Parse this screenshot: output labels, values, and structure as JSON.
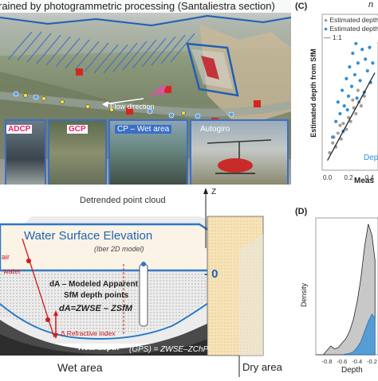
{
  "top_left": {
    "title": "rained by photogrammetric processing (Santaliestra section)",
    "flow_label": "Flow direction",
    "photos": [
      {
        "label": "ADCP",
        "color": "#e8206e"
      },
      {
        "label": "GCP",
        "color": "#e8206e"
      },
      {
        "label": "CP – Wet area",
        "color": "#ffffff"
      },
      {
        "label": "Autogiro",
        "color": "#ffffff"
      }
    ]
  },
  "panel_c": {
    "letter": "(C)",
    "corner_text": "n",
    "legend": [
      "Estimated depth",
      "Estimated depth",
      "1:1"
    ],
    "ylabel": "Estimated depth from SfM",
    "xlabel": "Meas",
    "inset_label": "Dept",
    "xticks": [
      "0.0",
      "0.2",
      "0.4"
    ]
  },
  "chart_data": [
    {
      "type": "scatter",
      "title": "",
      "xlabel": "Meas",
      "ylabel": "Estimated depth from SfM",
      "xlim": [
        -0.05,
        0.48
      ],
      "ylim": [
        -0.05,
        0.75
      ],
      "xticks": [
        0.0,
        0.2,
        0.4
      ],
      "series": [
        {
          "name": "Estimated depth",
          "color": "#9e9e9e",
          "points": [
            [
              0.02,
              0.04
            ],
            [
              0.05,
              0.09
            ],
            [
              0.08,
              0.07
            ],
            [
              0.1,
              0.14
            ],
            [
              0.13,
              0.11
            ],
            [
              0.15,
              0.19
            ],
            [
              0.18,
              0.16
            ],
            [
              0.2,
              0.22
            ],
            [
              0.22,
              0.2
            ],
            [
              0.25,
              0.27
            ],
            [
              0.27,
              0.24
            ],
            [
              0.3,
              0.3
            ],
            [
              0.32,
              0.28
            ],
            [
              0.35,
              0.33
            ],
            [
              0.12,
              0.18
            ],
            [
              0.24,
              0.31
            ],
            [
              0.06,
              0.12
            ],
            [
              0.29,
              0.36
            ]
          ]
        },
        {
          "name": "Estimated depth",
          "color": "#2f8fd8",
          "points": [
            [
              0.05,
              0.12
            ],
            [
              0.08,
              0.2
            ],
            [
              0.1,
              0.3
            ],
            [
              0.12,
              0.24
            ],
            [
              0.14,
              0.36
            ],
            [
              0.16,
              0.28
            ],
            [
              0.18,
              0.42
            ],
            [
              0.2,
              0.33
            ],
            [
              0.21,
              0.48
            ],
            [
              0.23,
              0.38
            ],
            [
              0.24,
              0.55
            ],
            [
              0.26,
              0.44
            ],
            [
              0.27,
              0.6
            ],
            [
              0.29,
              0.5
            ],
            [
              0.3,
              0.66
            ],
            [
              0.31,
              0.41
            ],
            [
              0.33,
              0.57
            ],
            [
              0.34,
              0.7
            ],
            [
              0.36,
              0.52
            ],
            [
              0.37,
              0.64
            ],
            [
              0.38,
              0.46
            ],
            [
              0.39,
              0.72
            ],
            [
              0.4,
              0.58
            ],
            [
              0.42,
              0.68
            ],
            [
              0.43,
              0.5
            ],
            [
              0.44,
              0.62
            ],
            [
              0.45,
              0.73
            ],
            [
              0.35,
              0.35
            ],
            [
              0.28,
              0.32
            ],
            [
              0.19,
              0.26
            ],
            [
              0.41,
              0.4
            ],
            [
              0.15,
              0.15
            ]
          ]
        }
      ],
      "reference_line": "1:1"
    },
    {
      "type": "area",
      "title": "",
      "xlabel": "Depth",
      "ylabel": "Density",
      "xticks": [
        -0.8,
        -0.6,
        -0.4,
        -0.2
      ],
      "xlim": [
        -0.95,
        -0.12
      ],
      "series": [
        {
          "name": "",
          "color": "#6a6a6a",
          "x": [
            -0.95,
            -0.85,
            -0.8,
            -0.75,
            -0.7,
            -0.65,
            -0.6,
            -0.55,
            -0.5,
            -0.45,
            -0.4,
            -0.35,
            -0.3,
            -0.25,
            -0.2,
            -0.16
          ],
          "y": [
            0.0,
            0.0,
            0.3,
            0.6,
            0.4,
            0.5,
            0.8,
            1.1,
            1.6,
            2.4,
            3.6,
            5.2,
            7.4,
            9.0,
            8.2,
            6.5
          ]
        },
        {
          "name": "",
          "color": "#2f8fd8",
          "x": [
            -0.6,
            -0.55,
            -0.5,
            -0.45,
            -0.4,
            -0.35,
            -0.3,
            -0.25,
            -0.2,
            -0.16
          ],
          "y": [
            0.0,
            0.05,
            0.1,
            0.2,
            0.5,
            0.9,
            1.6,
            2.3,
            2.8,
            2.5
          ]
        }
      ]
    }
  ],
  "panel_d": {
    "letter": "(D)",
    "ylabel": "Density",
    "xlabel": "Depth",
    "xticks": [
      "-0.8",
      "-0.6",
      "-0.4",
      "-0.2"
    ]
  },
  "diagram": {
    "title": "Detrended point cloud",
    "axis_z": "Z",
    "wse_title": "Water Surface Elevation",
    "wse_sub": "(Iber 2D model)",
    "zero_label": "- 0",
    "air_label": "air",
    "water_label": "water",
    "da_line1": "dA – Modeled Apparent",
    "da_line2": "SfM depth points",
    "da_formula": "dA=ZWSE – ZSfM",
    "refractive": "Δ Refractive index",
    "real_depth": "Real depth",
    "gps_formula": "(GPS) = ZWSE–ZChP",
    "wet_area": "Wet area",
    "dry_area": "Dry area"
  }
}
